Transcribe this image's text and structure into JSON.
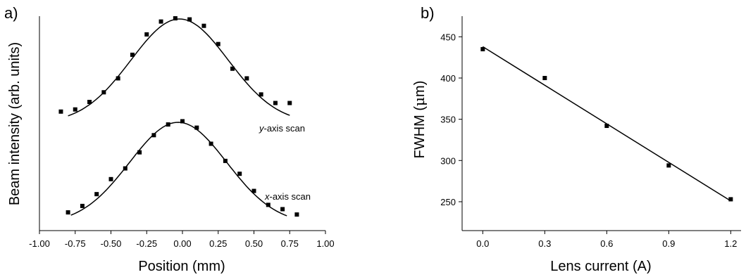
{
  "chart_data": [
    {
      "type": "scatter",
      "panel_label": "a)",
      "xlabel": "Position (mm)",
      "ylabel": "Beam intensity (arb. units)",
      "xlim": [
        -1.0,
        1.0
      ],
      "x_tick_labels": [
        "-1.00",
        "-0.75",
        "-0.50",
        "-0.25",
        "0.00",
        "0.25",
        "0.50",
        "0.75",
        "1.00"
      ],
      "x_tick_values": [
        -1.0,
        -0.75,
        -0.5,
        -0.25,
        0.0,
        0.25,
        0.5,
        0.75,
        1.0
      ],
      "ylim": [
        0,
        1
      ],
      "y_ticks_labeled": false,
      "grid": false,
      "series": [
        {
          "annotation_italic": "y",
          "annotation_rest": "-axis scan",
          "x": [
            -0.85,
            -0.75,
            -0.65,
            -0.55,
            -0.45,
            -0.35,
            -0.25,
            -0.15,
            -0.05,
            0.05,
            0.15,
            0.25,
            0.35,
            0.45,
            0.55,
            0.65,
            0.75
          ],
          "y": [
            0.555,
            0.565,
            0.6,
            0.645,
            0.71,
            0.82,
            0.915,
            0.975,
            0.99,
            0.985,
            0.955,
            0.87,
            0.755,
            0.71,
            0.635,
            0.595,
            0.595
          ],
          "fit": {
            "baseline": 0.5,
            "amplitude": 0.487,
            "center": -0.02,
            "sigma": 0.34,
            "x_range": [
              -0.8,
              0.75
            ]
          }
        },
        {
          "annotation_italic": "x",
          "annotation_rest": "-axis scan",
          "x": [
            -0.8,
            -0.7,
            -0.6,
            -0.5,
            -0.4,
            -0.3,
            -0.2,
            -0.1,
            0.0,
            0.1,
            0.2,
            0.3,
            0.4,
            0.5,
            0.6,
            0.7,
            0.8
          ],
          "y": [
            0.085,
            0.115,
            0.17,
            0.24,
            0.29,
            0.365,
            0.445,
            0.495,
            0.51,
            0.48,
            0.405,
            0.325,
            0.265,
            0.185,
            0.12,
            0.1,
            0.075
          ],
          "fit": {
            "baseline": 0.03,
            "amplitude": 0.475,
            "center": -0.03,
            "sigma": 0.34,
            "x_range": [
              -0.78,
              0.73
            ]
          }
        }
      ]
    },
    {
      "type": "scatter",
      "panel_label": "b)",
      "xlabel": "Lens current (A)",
      "ylabel": "FWHM (μm)",
      "ylabel_prefix": "FWHM (",
      "ylabel_mu": "μ",
      "ylabel_suffix": "m)",
      "xlim": [
        -0.1,
        1.25
      ],
      "x_tick_labels": [
        "0.0",
        "0.3",
        "0.6",
        "0.9",
        "1.2"
      ],
      "x_tick_values": [
        0.0,
        0.3,
        0.6,
        0.9,
        1.2
      ],
      "ylim": [
        215,
        475
      ],
      "y_tick_labels": [
        "250",
        "300",
        "350",
        "400",
        "450"
      ],
      "y_tick_values": [
        250,
        300,
        350,
        400,
        450
      ],
      "grid": false,
      "series": [
        {
          "x": [
            0.0,
            0.3,
            0.6,
            0.9,
            1.2
          ],
          "y": [
            435,
            400,
            342,
            294,
            253
          ],
          "fit": {
            "type": "linear",
            "x_range": [
              0.0,
              1.2
            ],
            "y_range": [
              438,
              251
            ]
          }
        }
      ]
    }
  ]
}
